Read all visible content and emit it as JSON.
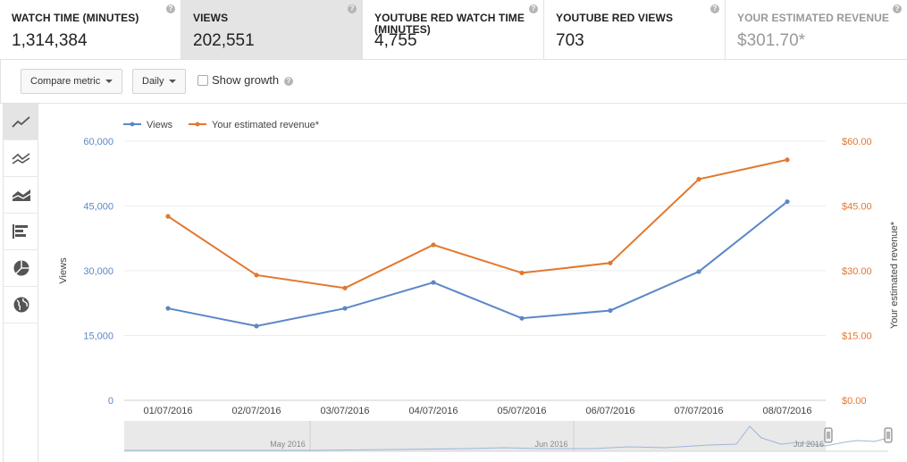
{
  "cards": [
    {
      "label": "WATCH TIME (MINUTES)",
      "value": "1,314,384"
    },
    {
      "label": "VIEWS",
      "value": "202,551"
    },
    {
      "label": "YOUTUBE RED WATCH TIME (MINUTES)",
      "value": "4,755"
    },
    {
      "label": "YOUTUBE RED VIEWS",
      "value": "703"
    },
    {
      "label": "YOUR ESTIMATED REVENUE",
      "value": "$301.70*"
    }
  ],
  "help_glyph": "?",
  "toolbar": {
    "compare_label": "Compare metric",
    "interval_label": "Daily",
    "show_growth_label": "Show growth"
  },
  "chart_icons": [
    "line-chart-icon",
    "multiline-chart-icon",
    "stacked-area-icon",
    "bar-chart-icon",
    "pie-chart-icon",
    "globe-map-icon"
  ],
  "colors": {
    "views": "#5b87c7",
    "revenue": "#e3772f",
    "grid": "#ececec"
  },
  "chart_data": {
    "type": "line",
    "categories": [
      "01/07/2016",
      "02/07/2016",
      "03/07/2016",
      "04/07/2016",
      "05/07/2016",
      "06/07/2016",
      "07/07/2016",
      "08/07/2016"
    ],
    "series": [
      {
        "name": "Views",
        "axis": "left",
        "values": [
          21300,
          17200,
          21300,
          27300,
          19000,
          20800,
          29800,
          46000
        ]
      },
      {
        "name": "Your estimated revenue*",
        "axis": "right",
        "values": [
          42.6,
          29.0,
          26.0,
          36.0,
          29.5,
          31.8,
          51.2,
          55.7
        ]
      }
    ],
    "ylabel": "Views",
    "y2label": "Your estimated revenue*",
    "yticks": [
      "0",
      "15,000",
      "30,000",
      "45,000",
      "60,000"
    ],
    "y2ticks": [
      "$0.00",
      "$15.00",
      "$30.00",
      "$45.00",
      "$60.00"
    ],
    "ylim": [
      0,
      60000
    ],
    "y2lim": [
      0,
      60
    ],
    "legend_position": "top-left",
    "grid": true
  },
  "navigator": {
    "labels": [
      "May 2016",
      "Jun 2016",
      "Jul 2016"
    ]
  }
}
